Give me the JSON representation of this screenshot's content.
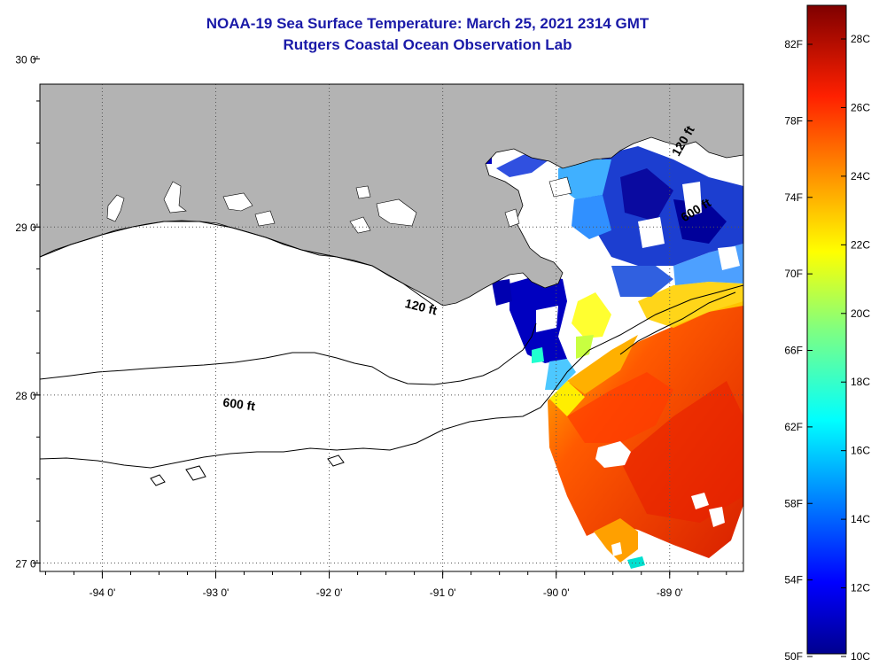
{
  "title": {
    "line1": "NOAA-19 Sea Surface Temperature:  March 25, 2021 2314 GMT",
    "line2": "Rutgers Coastal Ocean Observation Lab"
  },
  "map": {
    "lon_range": [
      -94.55,
      -88.35
    ],
    "lat_range": [
      26.95,
      29.85
    ],
    "lon_ticks": [
      {
        "value": -94,
        "label": "-94 0'"
      },
      {
        "value": -93,
        "label": "-93 0'"
      },
      {
        "value": -92,
        "label": "-92 0'"
      },
      {
        "value": -91,
        "label": "-91 0'"
      },
      {
        "value": -90,
        "label": "-90 0'"
      },
      {
        "value": -89,
        "label": "-89 0'"
      }
    ],
    "lat_ticks": [
      {
        "value": 30,
        "label": "30 0'"
      },
      {
        "value": 29,
        "label": "29 0'"
      },
      {
        "value": 28,
        "label": "28 0'"
      },
      {
        "value": 27,
        "label": "27 0'"
      }
    ],
    "contour_labels": [
      {
        "text": "120 ft",
        "lon": -91.2,
        "lat": 28.5,
        "angle": 14
      },
      {
        "text": "600 ft",
        "lon": -92.8,
        "lat": 27.92,
        "angle": 8
      },
      {
        "text": "600 ft",
        "lon": -88.75,
        "lat": 29.08,
        "angle": -32
      },
      {
        "text": "120 ft",
        "lon": -88.85,
        "lat": 29.5,
        "angle": -60
      }
    ],
    "colors": {
      "land": "#b3b3b3",
      "ocean": "#ffffff",
      "coastline": "#000000",
      "grid": "#555555"
    }
  },
  "colorbar": {
    "fahrenheit_labels": [
      "82F",
      "78F",
      "74F",
      "70F",
      "66F",
      "62F",
      "58F",
      "54F",
      "50F"
    ],
    "celsius_labels": [
      "28C",
      "26C",
      "24C",
      "22C",
      "20C",
      "18C",
      "16C",
      "14C",
      "12C",
      "10C"
    ],
    "colors": [
      "#7f0000",
      "#ff0000",
      "#ff8000",
      "#ffff00",
      "#80ff80",
      "#00ffff",
      "#0080ff",
      "#0000ff",
      "#00008f"
    ]
  }
}
